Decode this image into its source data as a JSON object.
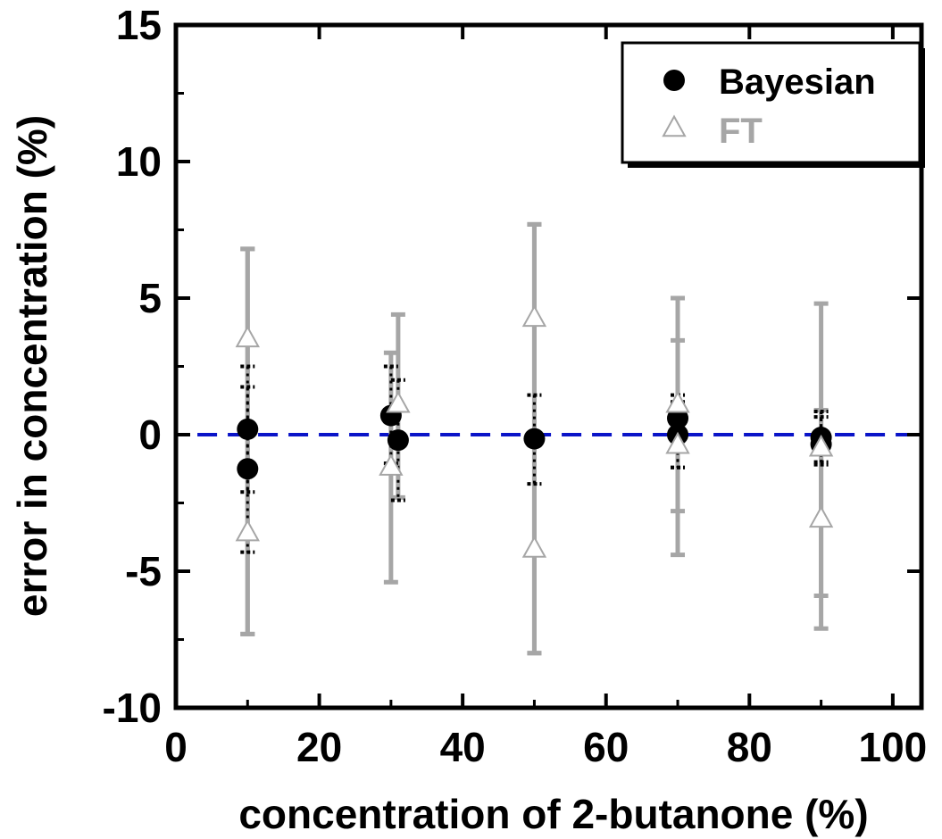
{
  "chart_data": {
    "type": "scatter",
    "title": "",
    "xlabel": "concentration of 2-butanone (%)",
    "ylabel": "error in concentration (%)",
    "xlim": [
      0,
      104
    ],
    "ylim": [
      -10,
      15
    ],
    "xticks": [
      0,
      20,
      40,
      60,
      80,
      100
    ],
    "yticks": [
      -10,
      -5,
      0,
      5,
      10,
      15
    ],
    "xtick_labels": [
      "0",
      "20",
      "40",
      "60",
      "80",
      "100"
    ],
    "ytick_labels": [
      "-10",
      "-5",
      "0",
      "5",
      "10",
      "15"
    ],
    "grid": false,
    "legend_position": "top-right",
    "reference_line": {
      "y": 0,
      "style": "dashed",
      "color": "#0a14c8"
    },
    "series": [
      {
        "name": "Bayesian",
        "marker": "filled-circle",
        "color": "#000000",
        "error_bar_color": "#000000",
        "error_bar_style": "dotted",
        "points": [
          {
            "x": 10,
            "y": 0.2,
            "yerr_low": -2.1,
            "yerr_high": 2.5
          },
          {
            "x": 10,
            "y": -1.25,
            "yerr_low": -4.3,
            "yerr_high": 1.75
          },
          {
            "x": 30,
            "y": 0.7,
            "yerr_low": -1.05,
            "yerr_high": 2.5
          },
          {
            "x": 31,
            "y": -0.2,
            "yerr_low": -2.4,
            "yerr_high": 2.0
          },
          {
            "x": 50,
            "y": -0.15,
            "yerr_low": -1.8,
            "yerr_high": 1.45
          },
          {
            "x": 70,
            "y": 0.6,
            "yerr_low": -1.2,
            "yerr_high": 1.45
          },
          {
            "x": 70,
            "y": 0.0,
            "yerr_low": -1.2,
            "yerr_high": 1.2
          },
          {
            "x": 90,
            "y": -0.1,
            "yerr_low": -1.0,
            "yerr_high": 0.85
          },
          {
            "x": 90,
            "y": -0.35,
            "yerr_low": -1.1,
            "yerr_high": 0.65
          }
        ]
      },
      {
        "name": "FT",
        "marker": "open-triangle",
        "color": "#a6a6a6",
        "error_bar_color": "#a6a6a6",
        "error_bar_style": "solid",
        "points": [
          {
            "x": 10,
            "y": 3.5,
            "yerr_low": -7.3,
            "yerr_high": 6.8
          },
          {
            "x": 10,
            "y": -3.6,
            "yerr_low": -7.3,
            "yerr_high": 6.8
          },
          {
            "x": 30,
            "y": -1.2,
            "yerr_low": -5.4,
            "yerr_high": 3.0
          },
          {
            "x": 31,
            "y": 1.1,
            "yerr_low": -2.3,
            "yerr_high": 4.4
          },
          {
            "x": 50,
            "y": 4.25,
            "yerr_low": -8.0,
            "yerr_high": 7.7
          },
          {
            "x": 50,
            "y": -4.2,
            "yerr_low": -8.0,
            "yerr_high": 7.7
          },
          {
            "x": 70,
            "y": 1.1,
            "yerr_low": -2.8,
            "yerr_high": 5.0
          },
          {
            "x": 70,
            "y": -0.4,
            "yerr_low": -4.4,
            "yerr_high": 3.45
          },
          {
            "x": 90,
            "y": -0.5,
            "yerr_low": -5.9,
            "yerr_high": 4.8
          },
          {
            "x": 90,
            "y": -3.1,
            "yerr_low": -7.1,
            "yerr_high": 0.9
          }
        ]
      }
    ]
  }
}
